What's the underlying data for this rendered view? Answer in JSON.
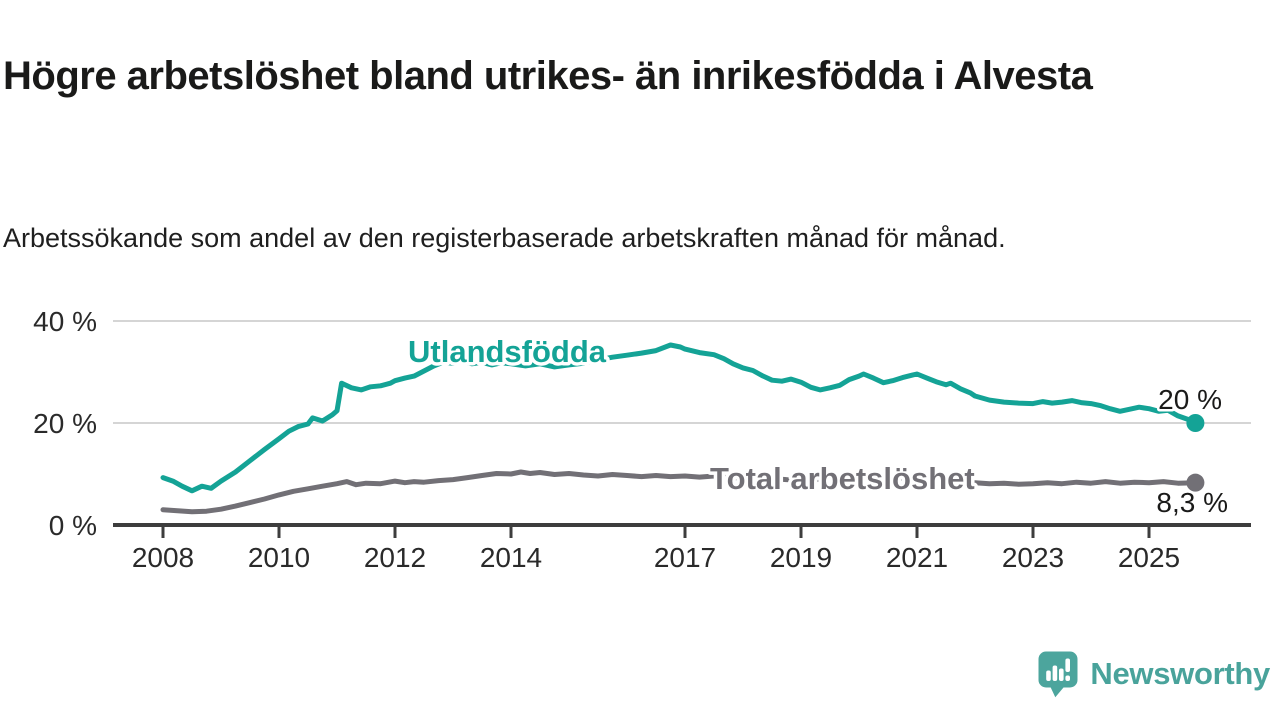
{
  "page": {
    "title": "Högre arbetslöshet bland utrikes- än inrikesfödda i Alvesta",
    "subtitle": "Arbetssökande som andel av den registerbaserade arbetskraften månad för månad."
  },
  "footer": {
    "brand": "Newsworthy",
    "logo_icon": "newsworthy-speech-bubble-bar-chart-icon"
  },
  "colors": {
    "series_foreign_born": "#14a396",
    "series_total": "#727076",
    "axis": "#3d3d3d",
    "grid": "#d5d5d5",
    "text": "#1a1a19",
    "brand_teal": "#4ca59d"
  },
  "chart_data": {
    "type": "line",
    "title": "Högre arbetslöshet bland utrikes- än inrikesfödda i Alvesta",
    "subtitle": "Arbetssökande som andel av den registerbaserade arbetskraften månad för månad.",
    "unit": "%",
    "grid": true,
    "legend_position": "inline-labels",
    "ylim": [
      0,
      42
    ],
    "yticks": [
      {
        "value": 0,
        "label": "0 %"
      },
      {
        "value": 20,
        "label": "20 %"
      },
      {
        "value": 40,
        "label": "40 %"
      }
    ],
    "xlim": [
      2007.15,
      2026.75
    ],
    "xticks": [
      {
        "value": 2008,
        "label": "2008"
      },
      {
        "value": 2010,
        "label": "2010"
      },
      {
        "value": 2012,
        "label": "2012"
      },
      {
        "value": 2014,
        "label": "2014"
      },
      {
        "value": 2017,
        "label": "2017"
      },
      {
        "value": 2019,
        "label": "2019"
      },
      {
        "value": 2021,
        "label": "2021"
      },
      {
        "value": 2023,
        "label": "2023"
      },
      {
        "value": 2025,
        "label": "2025"
      }
    ],
    "series": [
      {
        "name": "Utlandsfödda",
        "color": "#14a396",
        "end_label": "20 %",
        "end_value": 20.0,
        "points": [
          [
            2008.0,
            9.3
          ],
          [
            2008.17,
            8.6
          ],
          [
            2008.33,
            7.6
          ],
          [
            2008.5,
            6.7
          ],
          [
            2008.67,
            7.6
          ],
          [
            2008.83,
            7.2
          ],
          [
            2009.0,
            8.6
          ],
          [
            2009.25,
            10.4
          ],
          [
            2009.5,
            12.6
          ],
          [
            2009.75,
            14.8
          ],
          [
            2010.0,
            16.9
          ],
          [
            2010.17,
            18.4
          ],
          [
            2010.33,
            19.3
          ],
          [
            2010.5,
            19.8
          ],
          [
            2010.58,
            21.0
          ],
          [
            2010.75,
            20.4
          ],
          [
            2010.92,
            21.6
          ],
          [
            2011.0,
            22.4
          ],
          [
            2011.08,
            27.8
          ],
          [
            2011.25,
            26.9
          ],
          [
            2011.42,
            26.5
          ],
          [
            2011.58,
            27.1
          ],
          [
            2011.75,
            27.3
          ],
          [
            2011.92,
            27.8
          ],
          [
            2012.0,
            28.3
          ],
          [
            2012.17,
            28.8
          ],
          [
            2012.33,
            29.2
          ],
          [
            2012.5,
            30.2
          ],
          [
            2012.67,
            31.2
          ],
          [
            2012.83,
            31.9
          ],
          [
            2013.0,
            31.7
          ],
          [
            2013.17,
            32.1
          ],
          [
            2013.33,
            31.6
          ],
          [
            2013.5,
            31.9
          ],
          [
            2013.67,
            31.4
          ],
          [
            2013.83,
            31.8
          ],
          [
            2014.0,
            31.6
          ],
          [
            2014.25,
            31.2
          ],
          [
            2014.5,
            31.6
          ],
          [
            2014.75,
            31.0
          ],
          [
            2015.0,
            31.4
          ],
          [
            2015.25,
            31.7
          ],
          [
            2015.5,
            32.4
          ],
          [
            2015.75,
            32.9
          ],
          [
            2016.0,
            33.3
          ],
          [
            2016.25,
            33.7
          ],
          [
            2016.5,
            34.2
          ],
          [
            2016.75,
            35.3
          ],
          [
            2016.92,
            34.9
          ],
          [
            2017.0,
            34.5
          ],
          [
            2017.25,
            33.8
          ],
          [
            2017.5,
            33.4
          ],
          [
            2017.67,
            32.6
          ],
          [
            2017.83,
            31.6
          ],
          [
            2018.0,
            30.8
          ],
          [
            2018.17,
            30.3
          ],
          [
            2018.33,
            29.3
          ],
          [
            2018.5,
            28.4
          ],
          [
            2018.67,
            28.2
          ],
          [
            2018.83,
            28.6
          ],
          [
            2019.0,
            28.0
          ],
          [
            2019.17,
            27.0
          ],
          [
            2019.33,
            26.5
          ],
          [
            2019.5,
            26.9
          ],
          [
            2019.67,
            27.4
          ],
          [
            2019.83,
            28.5
          ],
          [
            2020.0,
            29.2
          ],
          [
            2020.08,
            29.6
          ],
          [
            2020.25,
            28.8
          ],
          [
            2020.42,
            27.9
          ],
          [
            2020.58,
            28.3
          ],
          [
            2020.75,
            28.9
          ],
          [
            2020.92,
            29.4
          ],
          [
            2021.0,
            29.6
          ],
          [
            2021.17,
            28.8
          ],
          [
            2021.33,
            28.1
          ],
          [
            2021.5,
            27.5
          ],
          [
            2021.58,
            27.8
          ],
          [
            2021.75,
            26.7
          ],
          [
            2021.92,
            25.9
          ],
          [
            2022.0,
            25.3
          ],
          [
            2022.25,
            24.5
          ],
          [
            2022.5,
            24.1
          ],
          [
            2022.75,
            23.9
          ],
          [
            2023.0,
            23.8
          ],
          [
            2023.17,
            24.2
          ],
          [
            2023.33,
            23.9
          ],
          [
            2023.5,
            24.1
          ],
          [
            2023.67,
            24.4
          ],
          [
            2023.83,
            24.0
          ],
          [
            2024.0,
            23.8
          ],
          [
            2024.17,
            23.4
          ],
          [
            2024.33,
            22.8
          ],
          [
            2024.5,
            22.3
          ],
          [
            2024.67,
            22.7
          ],
          [
            2024.83,
            23.1
          ],
          [
            2025.0,
            22.8
          ],
          [
            2025.17,
            22.3
          ],
          [
            2025.33,
            22.5
          ],
          [
            2025.5,
            21.4
          ],
          [
            2025.67,
            20.7
          ],
          [
            2025.8,
            20.0
          ]
        ]
      },
      {
        "name": "Total arbetslöshet",
        "color": "#727076",
        "end_label": "8,3 %",
        "end_value": 8.3,
        "points": [
          [
            2008.0,
            3.0
          ],
          [
            2008.25,
            2.8
          ],
          [
            2008.5,
            2.6
          ],
          [
            2008.75,
            2.7
          ],
          [
            2009.0,
            3.1
          ],
          [
            2009.25,
            3.7
          ],
          [
            2009.5,
            4.4
          ],
          [
            2009.75,
            5.1
          ],
          [
            2010.0,
            5.9
          ],
          [
            2010.25,
            6.6
          ],
          [
            2010.5,
            7.1
          ],
          [
            2010.75,
            7.6
          ],
          [
            2011.0,
            8.1
          ],
          [
            2011.17,
            8.5
          ],
          [
            2011.33,
            7.9
          ],
          [
            2011.5,
            8.2
          ],
          [
            2011.75,
            8.1
          ],
          [
            2012.0,
            8.6
          ],
          [
            2012.17,
            8.3
          ],
          [
            2012.33,
            8.5
          ],
          [
            2012.5,
            8.4
          ],
          [
            2012.75,
            8.7
          ],
          [
            2013.0,
            8.9
          ],
          [
            2013.25,
            9.3
          ],
          [
            2013.5,
            9.7
          ],
          [
            2013.75,
            10.1
          ],
          [
            2014.0,
            10.0
          ],
          [
            2014.17,
            10.4
          ],
          [
            2014.33,
            10.1
          ],
          [
            2014.5,
            10.3
          ],
          [
            2014.75,
            9.9
          ],
          [
            2015.0,
            10.1
          ],
          [
            2015.25,
            9.8
          ],
          [
            2015.5,
            9.6
          ],
          [
            2015.75,
            9.9
          ],
          [
            2016.0,
            9.7
          ],
          [
            2016.25,
            9.5
          ],
          [
            2016.5,
            9.7
          ],
          [
            2016.75,
            9.5
          ],
          [
            2017.0,
            9.6
          ],
          [
            2017.25,
            9.4
          ],
          [
            2017.5,
            9.6
          ],
          [
            2017.75,
            9.3
          ],
          [
            2018.0,
            9.2
          ],
          [
            2018.25,
            9.0
          ],
          [
            2018.5,
            9.1
          ],
          [
            2018.75,
            8.9
          ],
          [
            2019.0,
            8.8
          ],
          [
            2019.25,
            8.9
          ],
          [
            2019.5,
            9.0
          ],
          [
            2019.75,
            9.2
          ],
          [
            2020.0,
            9.3
          ],
          [
            2020.25,
            9.6
          ],
          [
            2020.5,
            9.4
          ],
          [
            2020.75,
            9.2
          ],
          [
            2021.0,
            9.4
          ],
          [
            2021.25,
            9.1
          ],
          [
            2021.5,
            8.8
          ],
          [
            2021.75,
            8.5
          ],
          [
            2022.0,
            8.3
          ],
          [
            2022.25,
            8.1
          ],
          [
            2022.5,
            8.2
          ],
          [
            2022.75,
            8.0
          ],
          [
            2023.0,
            8.1
          ],
          [
            2023.25,
            8.3
          ],
          [
            2023.5,
            8.1
          ],
          [
            2023.75,
            8.4
          ],
          [
            2024.0,
            8.2
          ],
          [
            2024.25,
            8.5
          ],
          [
            2024.5,
            8.2
          ],
          [
            2024.75,
            8.4
          ],
          [
            2025.0,
            8.3
          ],
          [
            2025.25,
            8.5
          ],
          [
            2025.5,
            8.2
          ],
          [
            2025.8,
            8.3
          ]
        ]
      }
    ]
  }
}
